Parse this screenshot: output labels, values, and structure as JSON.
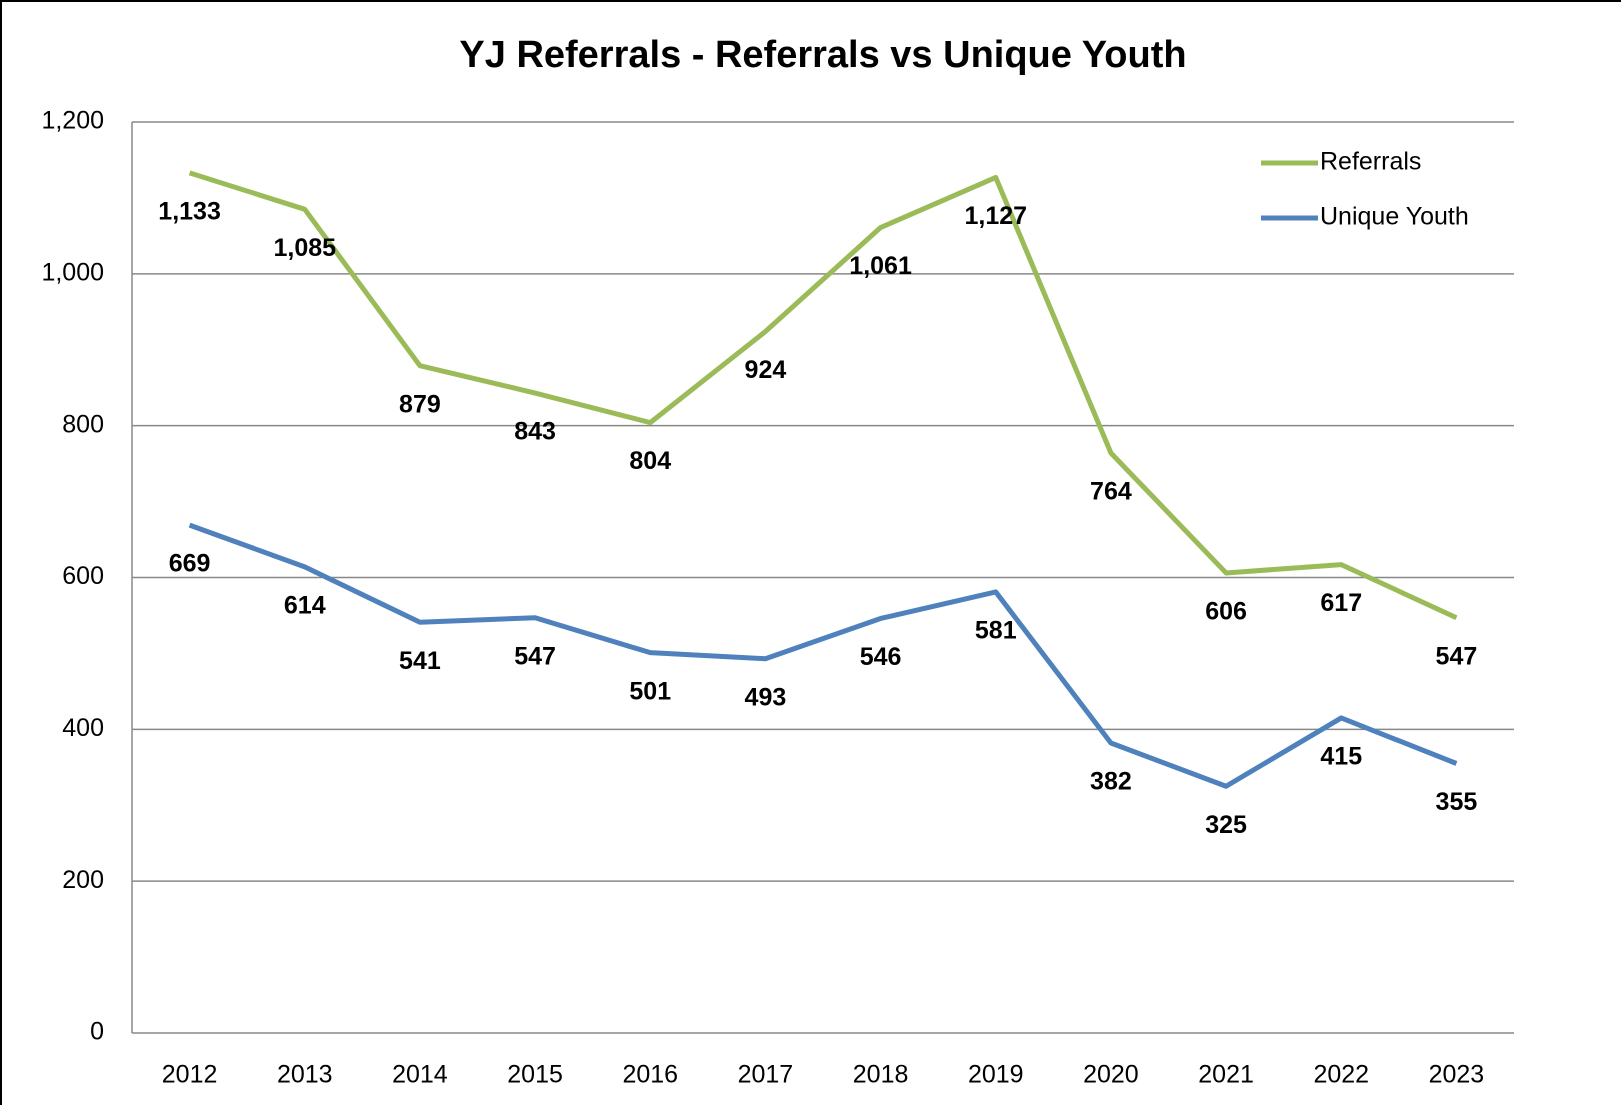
{
  "chart_data": {
    "type": "line",
    "title": "YJ Referrals - Referrals vs Unique Youth",
    "categories": [
      "2012",
      "2013",
      "2014",
      "2015",
      "2016",
      "2017",
      "2018",
      "2019",
      "2020",
      "2021",
      "2022",
      "2023"
    ],
    "series": [
      {
        "name": "Referrals",
        "color": "#9bbb59",
        "values": [
          1133,
          1085,
          879,
          843,
          804,
          924,
          1061,
          1127,
          764,
          606,
          617,
          547
        ],
        "value_labels": [
          "1,133",
          "1,085",
          "879",
          "843",
          "804",
          "924",
          "1,061",
          "1,127",
          "764",
          "606",
          "617",
          "547"
        ]
      },
      {
        "name": "Unique Youth",
        "color": "#4f81bd",
        "values": [
          669,
          614,
          541,
          547,
          501,
          493,
          546,
          581,
          382,
          325,
          415,
          355
        ]
      }
    ],
    "ylim": [
      0,
      1200
    ],
    "yticks": [
      0,
      200,
      400,
      600,
      800,
      {
        "value": 1000,
        "label": "1,000"
      },
      {
        "value": 1200,
        "label": "1,200"
      }
    ],
    "grid": true,
    "legend": "top-right"
  }
}
